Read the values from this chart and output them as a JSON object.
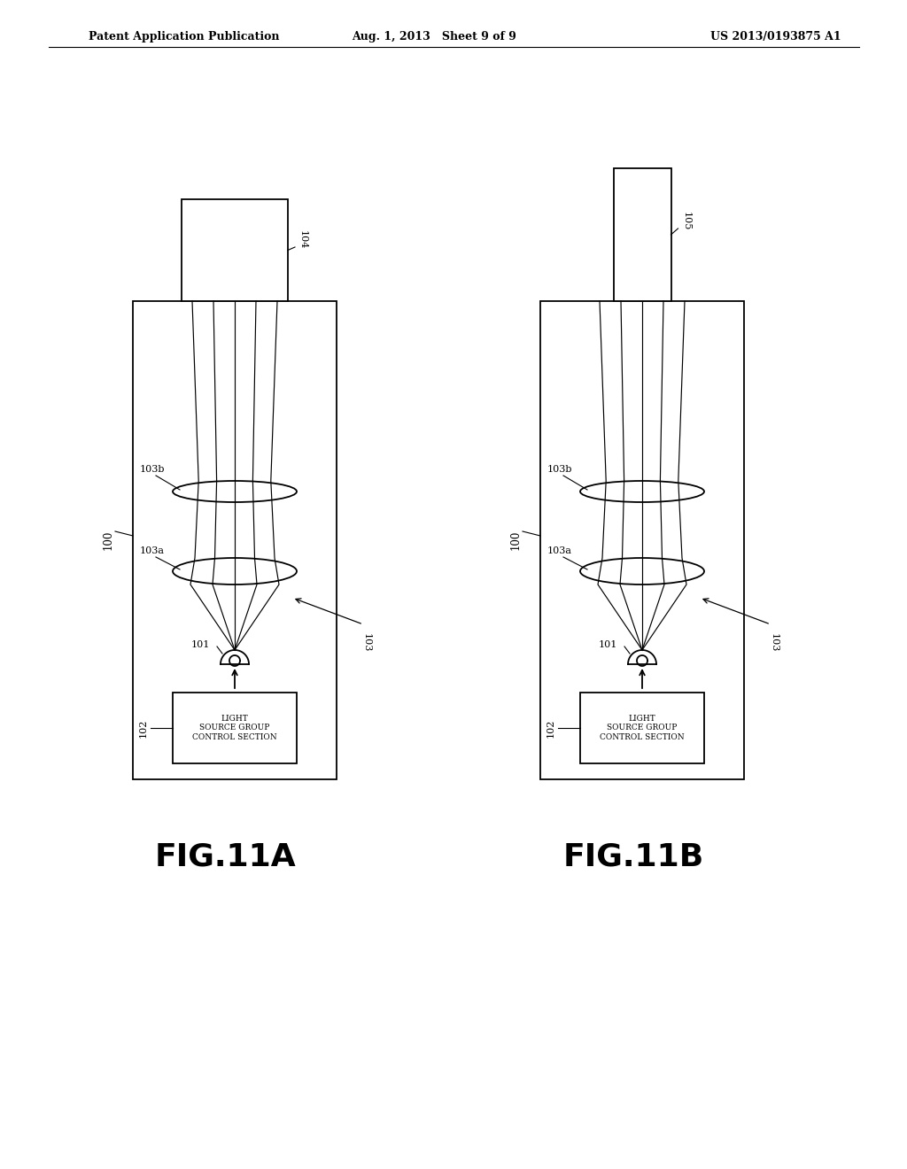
{
  "bg_color": "#ffffff",
  "header_left": "Patent Application Publication",
  "header_mid": "Aug. 1, 2013   Sheet 9 of 9",
  "header_right": "US 2013/0193875 A1",
  "fig_a_label": "FIG.11A",
  "fig_b_label": "FIG.11B",
  "label_100": "100",
  "label_101": "101",
  "label_102": "102",
  "label_103": "103",
  "label_103a": "103a",
  "label_103b": "103b",
  "label_104": "104",
  "label_105": "105",
  "label_control": "LIGHT\nSOURCE GROUP\nCONTROL SECTION",
  "line_color": "#000000",
  "line_width": 1.3
}
